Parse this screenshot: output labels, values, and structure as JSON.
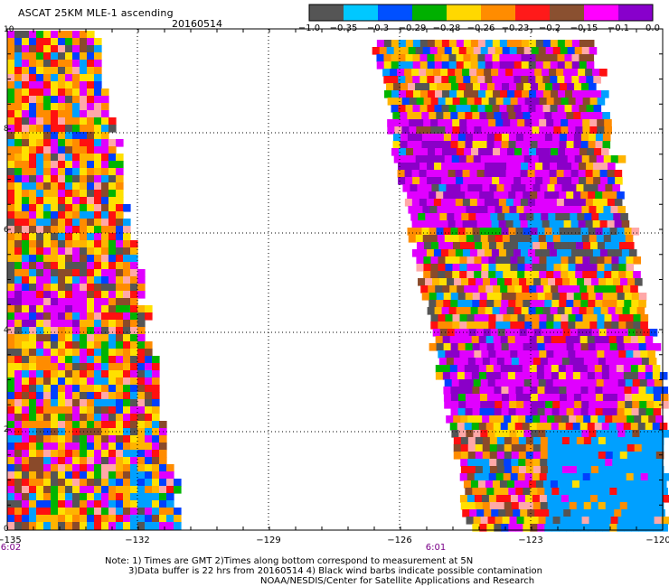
{
  "header": {
    "title": "ASCAT 25KM MLE-1 ascending",
    "date": "20160514"
  },
  "colorbar": {
    "colors": [
      "#555555",
      "#00c8ff",
      "#0050ff",
      "#00b000",
      "#ffd800",
      "#ff8c00",
      "#ff1a1a",
      "#8a5030",
      "#ff00ff",
      "#8800cc"
    ],
    "labels": [
      "−1.0",
      "−0.35",
      "−0.3",
      "−0.29",
      "−0.28",
      "−0.26",
      "−0.23",
      "−0.2",
      "−0.15",
      "−0.1",
      "0.0"
    ]
  },
  "map": {
    "x_ticks": [
      "−135",
      "−132",
      "−129",
      "−126",
      "−123",
      "−120"
    ],
    "y_ticks": [
      "10",
      "8",
      "6",
      "4",
      "2",
      "0"
    ],
    "pass_times": [
      "6:02",
      "6:01"
    ],
    "palette": [
      "#555555",
      "#00a0ff",
      "#0040ff",
      "#00b400",
      "#ffe000",
      "#ff8c00",
      "#ff1010",
      "#8a4a2a",
      "#e000ff",
      "#8a00c8",
      "#ffa8a8",
      "#ffb400"
    ]
  },
  "notes": [
    "Note: 1) Times are GMT 2)Times along bottom correspond to measurement at 5N",
    "3)Data buffer is 22 hrs from 20160514 4) Black wind barbs indicate possible contamination",
    "NOAA/NESDIS/Center for Satellite Applications and Research"
  ]
}
